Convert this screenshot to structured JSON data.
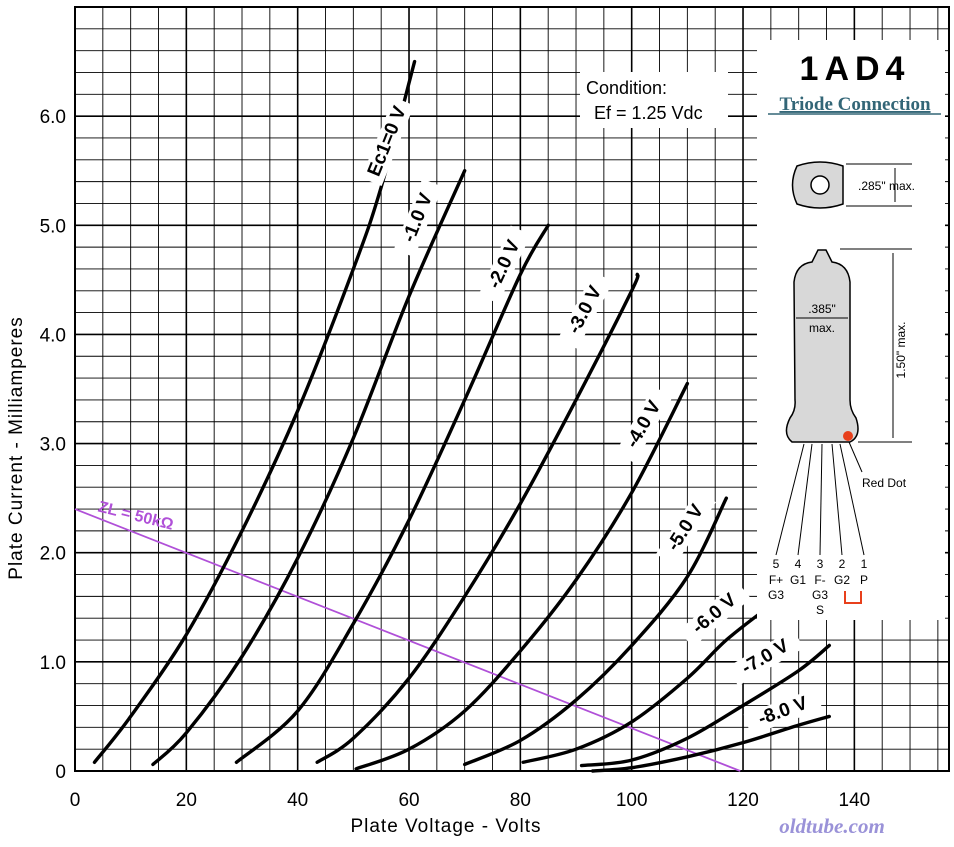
{
  "chart_data": {
    "type": "line",
    "xlabel": "Plate Voltage - Volts",
    "ylabel": "Plate Current - Milliamperes",
    "xlim": [
      0,
      157
    ],
    "ylim": [
      0,
      7.0
    ],
    "x_ticks": [
      "0",
      "20",
      "40",
      "60",
      "80",
      "100",
      "120",
      "140"
    ],
    "y_ticks": [
      "0",
      "1.0",
      "2.0",
      "3.0",
      "4.0",
      "5.0",
      "6.0"
    ],
    "grid": true,
    "series": [
      {
        "name": "Ec1=0 V",
        "points": [
          [
            3.5,
            0.08
          ],
          [
            10,
            0.5
          ],
          [
            20,
            1.25
          ],
          [
            30,
            2.2
          ],
          [
            40,
            3.3
          ],
          [
            50,
            4.6
          ],
          [
            55,
            5.35
          ],
          [
            61,
            6.5
          ]
        ]
      },
      {
        "name": "-1.0 V",
        "points": [
          [
            14,
            0.06
          ],
          [
            20,
            0.35
          ],
          [
            30,
            1.05
          ],
          [
            40,
            1.95
          ],
          [
            50,
            3.05
          ],
          [
            60,
            4.35
          ],
          [
            70,
            5.5
          ]
        ]
      },
      {
        "name": "-2.0 V",
        "points": [
          [
            29,
            0.08
          ],
          [
            40,
            0.55
          ],
          [
            50,
            1.35
          ],
          [
            60,
            2.3
          ],
          [
            70,
            3.4
          ],
          [
            80,
            4.55
          ],
          [
            85,
            5.0
          ]
        ]
      },
      {
        "name": "-3.0 V",
        "points": [
          [
            43.5,
            0.08
          ],
          [
            50,
            0.3
          ],
          [
            60,
            0.85
          ],
          [
            70,
            1.6
          ],
          [
            80,
            2.45
          ],
          [
            90,
            3.4
          ],
          [
            100,
            4.4
          ],
          [
            101,
            4.55
          ]
        ]
      },
      {
        "name": "-4.0 V",
        "points": [
          [
            50.5,
            0.02
          ],
          [
            60,
            0.2
          ],
          [
            70,
            0.55
          ],
          [
            80,
            1.1
          ],
          [
            90,
            1.75
          ],
          [
            100,
            2.55
          ],
          [
            110,
            3.55
          ]
        ]
      },
      {
        "name": "-5.0 V",
        "points": [
          [
            70,
            0.06
          ],
          [
            80,
            0.28
          ],
          [
            90,
            0.65
          ],
          [
            100,
            1.15
          ],
          [
            110,
            1.78
          ],
          [
            117,
            2.5
          ]
        ]
      },
      {
        "name": "-6.0 V",
        "points": [
          [
            80.5,
            0.08
          ],
          [
            90,
            0.2
          ],
          [
            100,
            0.45
          ],
          [
            110,
            0.85
          ],
          [
            117,
            1.2
          ],
          [
            124.5,
            1.5
          ]
        ]
      },
      {
        "name": "-7.0 V",
        "points": [
          [
            91,
            0.05
          ],
          [
            100,
            0.1
          ],
          [
            110,
            0.3
          ],
          [
            120,
            0.6
          ],
          [
            130,
            0.92
          ],
          [
            135.5,
            1.15
          ]
        ]
      },
      {
        "name": "-8.0 V",
        "points": [
          [
            93,
            0.0
          ],
          [
            100,
            0.03
          ],
          [
            110,
            0.13
          ],
          [
            120,
            0.26
          ],
          [
            130,
            0.42
          ],
          [
            135.5,
            0.5
          ]
        ]
      }
    ],
    "load_line": {
      "name": "ZL = 50kΩ",
      "points": [
        [
          0,
          2.4
        ],
        [
          119.5,
          0.0
        ]
      ],
      "color": "#b050d8"
    }
  },
  "condition": {
    "line1": "Condition:",
    "line2": "Ef = 1.25 Vdc"
  },
  "tube": {
    "type": "1AD4",
    "connection": "Triode Connection",
    "dim_diameter": ".285\" max.",
    "dim_width": ".385\"",
    "dim_width_max": "max.",
    "dim_height": "1.50\" max.",
    "red_dot": "Red Dot",
    "pin_numbers": [
      "5",
      "4",
      "3",
      "2",
      "1"
    ],
    "pin_names_row1": [
      "F+",
      "G1",
      "F-",
      "G2",
      "P"
    ],
    "pin_names_row2": [
      "G3",
      "",
      "G3",
      "",
      ""
    ],
    "pin_names_row3": [
      "",
      "",
      "S",
      "",
      ""
    ]
  },
  "watermark": "oldtube.com",
  "colors": {
    "curve": "#000000",
    "grid": "#000000",
    "load_line": "#b050d8",
    "red_dot": "#e8401c",
    "link": "#336677"
  }
}
